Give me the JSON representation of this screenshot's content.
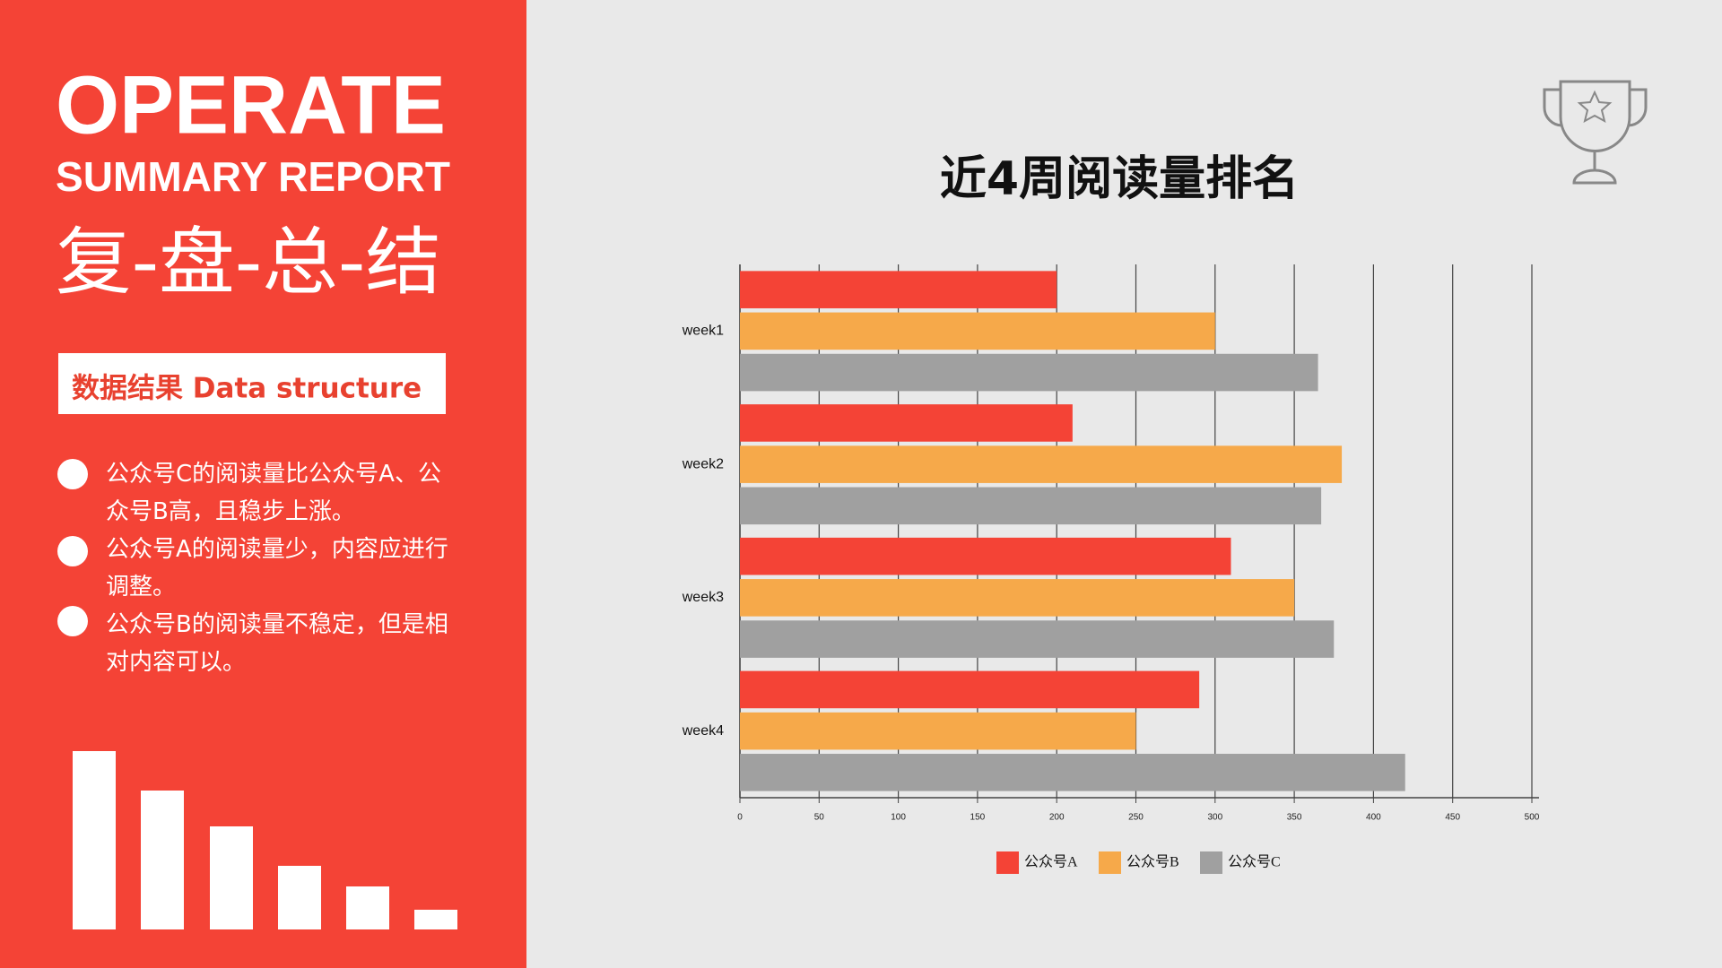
{
  "header": {
    "title": "OPERATE",
    "subtitle": "SUMMARY REPORT",
    "chinese_title": "复-盘-总-结"
  },
  "section": {
    "label": "数据结果 Data structure"
  },
  "bullets": [
    "公众号C的阅读量比公众号A、公众号B高，且稳步上涨。",
    "公众号A的阅读量少，内容应进行调整。",
    "公众号B的阅读量不稳定，但是相对内容可以。"
  ],
  "chart_data": {
    "type": "hbar",
    "title": "近4周阅读量排名",
    "categories": [
      "week1",
      "week2",
      "week3",
      "week4"
    ],
    "series": [
      {
        "name": "公众号A",
        "color": "#f44336",
        "values": [
          200,
          210,
          310,
          290
        ]
      },
      {
        "name": "公众号B",
        "color": "#f6a94a",
        "values": [
          300,
          380,
          350,
          250
        ]
      },
      {
        "name": "公众号C",
        "color": "#a0a0a0",
        "values": [
          365,
          367,
          375,
          420
        ]
      }
    ],
    "xlim": [
      0,
      500
    ],
    "xticks": [
      0,
      50,
      100,
      150,
      200,
      250,
      300,
      350,
      400,
      450,
      500
    ],
    "grid": true
  }
}
